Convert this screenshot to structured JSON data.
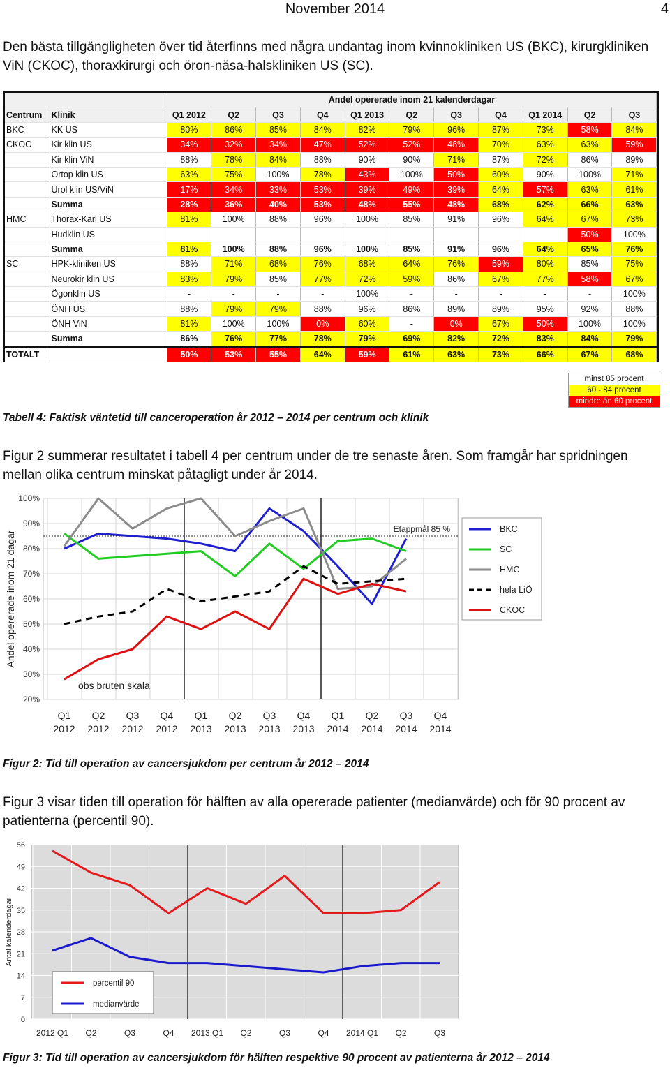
{
  "header": {
    "date": "November 2014",
    "page": "4"
  },
  "intro": "Den bästa tillgängligheten över tid återfinns med några undantag inom kvinnokliniken US (BKC), kirurgkliniken ViN (CKOC), thoraxkirurgi och öron-näsa-halskliniken US (SC).",
  "table": {
    "super_header": "Andel opererade inom 21 kalenderdagar",
    "col_headers": [
      "Centrum",
      "Klinik",
      "Q1 2012",
      "Q2",
      "Q3",
      "Q4",
      "Q1 2013",
      "Q2",
      "Q3",
      "Q4",
      "Q1 2014",
      "Q2",
      "Q3"
    ],
    "rows": [
      {
        "centrum": "BKC",
        "klinik": "KK US",
        "cells": [
          [
            "80%",
            "y"
          ],
          [
            "86%",
            "y"
          ],
          [
            "85%",
            "y"
          ],
          [
            "84%",
            "y"
          ],
          [
            "82%",
            "y"
          ],
          [
            "79%",
            "y"
          ],
          [
            "96%",
            "y"
          ],
          [
            "87%",
            "y"
          ],
          [
            "73%",
            "y"
          ],
          [
            "58%",
            "r"
          ],
          [
            "84%",
            "y"
          ]
        ]
      },
      {
        "centrum": "CKOC",
        "klinik": "Kir klin US",
        "cells": [
          [
            "34%",
            "r"
          ],
          [
            "32%",
            "r"
          ],
          [
            "34%",
            "r"
          ],
          [
            "47%",
            "r"
          ],
          [
            "52%",
            "r"
          ],
          [
            "52%",
            "r"
          ],
          [
            "48%",
            "r"
          ],
          [
            "70%",
            "y"
          ],
          [
            "63%",
            "y"
          ],
          [
            "63%",
            "y"
          ],
          [
            "59%",
            "r"
          ]
        ]
      },
      {
        "centrum": "",
        "klinik": "Kir klin ViN",
        "cells": [
          [
            "88%",
            "g"
          ],
          [
            "78%",
            "y"
          ],
          [
            "84%",
            "y"
          ],
          [
            "88%",
            "g"
          ],
          [
            "90%",
            "g"
          ],
          [
            "90%",
            "g"
          ],
          [
            "71%",
            "y"
          ],
          [
            "87%",
            "g"
          ],
          [
            "72%",
            "y"
          ],
          [
            "86%",
            "g"
          ],
          [
            "89%",
            "g"
          ]
        ]
      },
      {
        "centrum": "",
        "klinik": "Ortop klin US",
        "cells": [
          [
            "63%",
            "y"
          ],
          [
            "75%",
            "y"
          ],
          [
            "100%",
            "g"
          ],
          [
            "78%",
            "y"
          ],
          [
            "43%",
            "r"
          ],
          [
            "100%",
            "g"
          ],
          [
            "50%",
            "r"
          ],
          [
            "60%",
            "y"
          ],
          [
            "90%",
            "g"
          ],
          [
            "100%",
            "g"
          ],
          [
            "71%",
            "y"
          ]
        ]
      },
      {
        "centrum": "",
        "klinik": "Urol klin US/ViN",
        "cells": [
          [
            "17%",
            "r"
          ],
          [
            "34%",
            "r"
          ],
          [
            "33%",
            "r"
          ],
          [
            "53%",
            "r"
          ],
          [
            "39%",
            "r"
          ],
          [
            "49%",
            "r"
          ],
          [
            "39%",
            "r"
          ],
          [
            "64%",
            "y"
          ],
          [
            "57%",
            "r"
          ],
          [
            "63%",
            "y"
          ],
          [
            "61%",
            "y"
          ]
        ]
      },
      {
        "centrum": "",
        "klinik": "Summa",
        "bold": true,
        "cells": [
          [
            "28%",
            "r"
          ],
          [
            "36%",
            "r"
          ],
          [
            "40%",
            "r"
          ],
          [
            "53%",
            "r"
          ],
          [
            "48%",
            "r"
          ],
          [
            "55%",
            "r"
          ],
          [
            "48%",
            "r"
          ],
          [
            "68%",
            "y"
          ],
          [
            "62%",
            "y"
          ],
          [
            "66%",
            "y"
          ],
          [
            "63%",
            "y"
          ]
        ]
      },
      {
        "centrum": "HMC",
        "klinik": "Thorax-Kärl US",
        "cells": [
          [
            "81%",
            "y"
          ],
          [
            "100%",
            "g"
          ],
          [
            "88%",
            "g"
          ],
          [
            "96%",
            "g"
          ],
          [
            "100%",
            "g"
          ],
          [
            "85%",
            "g"
          ],
          [
            "91%",
            "g"
          ],
          [
            "96%",
            "g"
          ],
          [
            "64%",
            "y"
          ],
          [
            "67%",
            "y"
          ],
          [
            "73%",
            "y"
          ]
        ]
      },
      {
        "centrum": "",
        "klinik": "Hudklin US",
        "cells": [
          [
            "",
            "g"
          ],
          [
            "",
            "g"
          ],
          [
            "",
            "g"
          ],
          [
            "",
            "g"
          ],
          [
            "",
            "g"
          ],
          [
            "",
            "g"
          ],
          [
            "",
            "g"
          ],
          [
            "",
            "g"
          ],
          [
            "",
            "g"
          ],
          [
            "50%",
            "r"
          ],
          [
            "100%",
            "g"
          ]
        ]
      },
      {
        "centrum": "",
        "klinik": "Summa",
        "bold": true,
        "cells": [
          [
            "81%",
            "y"
          ],
          [
            "100%",
            "g"
          ],
          [
            "88%",
            "g"
          ],
          [
            "96%",
            "g"
          ],
          [
            "100%",
            "g"
          ],
          [
            "85%",
            "g"
          ],
          [
            "91%",
            "g"
          ],
          [
            "96%",
            "g"
          ],
          [
            "64%",
            "y"
          ],
          [
            "65%",
            "y"
          ],
          [
            "76%",
            "y"
          ]
        ]
      },
      {
        "centrum": "SC",
        "klinik": "HPK-kliniken US",
        "cells": [
          [
            "88%",
            "g"
          ],
          [
            "71%",
            "y"
          ],
          [
            "68%",
            "y"
          ],
          [
            "76%",
            "y"
          ],
          [
            "68%",
            "y"
          ],
          [
            "64%",
            "y"
          ],
          [
            "76%",
            "y"
          ],
          [
            "59%",
            "r"
          ],
          [
            "80%",
            "y"
          ],
          [
            "85%",
            "g"
          ],
          [
            "75%",
            "y"
          ]
        ]
      },
      {
        "centrum": "",
        "klinik": "Neurokir klin US",
        "cells": [
          [
            "83%",
            "y"
          ],
          [
            "79%",
            "y"
          ],
          [
            "85%",
            "g"
          ],
          [
            "77%",
            "y"
          ],
          [
            "72%",
            "y"
          ],
          [
            "59%",
            "y"
          ],
          [
            "86%",
            "g"
          ],
          [
            "67%",
            "y"
          ],
          [
            "77%",
            "y"
          ],
          [
            "58%",
            "r"
          ],
          [
            "67%",
            "y"
          ]
        ]
      },
      {
        "centrum": "",
        "klinik": "Ögonklin US",
        "cells": [
          [
            "-",
            "g"
          ],
          [
            "-",
            "g"
          ],
          [
            "-",
            "g"
          ],
          [
            "-",
            "g"
          ],
          [
            "100%",
            "g"
          ],
          [
            "-",
            "g"
          ],
          [
            "-",
            "g"
          ],
          [
            "-",
            "g"
          ],
          [
            "-",
            "g"
          ],
          [
            "-",
            "g"
          ],
          [
            "100%",
            "g"
          ]
        ]
      },
      {
        "centrum": "",
        "klinik": "ÖNH US",
        "cells": [
          [
            "88%",
            "g"
          ],
          [
            "79%",
            "y"
          ],
          [
            "79%",
            "y"
          ],
          [
            "88%",
            "g"
          ],
          [
            "96%",
            "g"
          ],
          [
            "86%",
            "g"
          ],
          [
            "89%",
            "g"
          ],
          [
            "89%",
            "g"
          ],
          [
            "95%",
            "g"
          ],
          [
            "92%",
            "g"
          ],
          [
            "88%",
            "g"
          ]
        ]
      },
      {
        "centrum": "",
        "klinik": "ÖNH ViN",
        "cells": [
          [
            "81%",
            "y"
          ],
          [
            "100%",
            "g"
          ],
          [
            "100%",
            "g"
          ],
          [
            "0%",
            "r"
          ],
          [
            "60%",
            "y"
          ],
          [
            "-",
            "g"
          ],
          [
            "0%",
            "r"
          ],
          [
            "67%",
            "y"
          ],
          [
            "50%",
            "r"
          ],
          [
            "100%",
            "g"
          ],
          [
            "100%",
            "g"
          ]
        ]
      },
      {
        "centrum": "",
        "klinik": "Summa",
        "bold": true,
        "cells": [
          [
            "86%",
            "g"
          ],
          [
            "76%",
            "y"
          ],
          [
            "77%",
            "y"
          ],
          [
            "78%",
            "y"
          ],
          [
            "79%",
            "y"
          ],
          [
            "69%",
            "y"
          ],
          [
            "82%",
            "y"
          ],
          [
            "72%",
            "y"
          ],
          [
            "83%",
            "y"
          ],
          [
            "84%",
            "y"
          ],
          [
            "79%",
            "y"
          ]
        ]
      },
      {
        "centrum": "TOTALT",
        "klinik": "",
        "bold": true,
        "cells": [
          [
            "50%",
            "r"
          ],
          [
            "53%",
            "r"
          ],
          [
            "55%",
            "r"
          ],
          [
            "64%",
            "y"
          ],
          [
            "59%",
            "r"
          ],
          [
            "61%",
            "y"
          ],
          [
            "63%",
            "y"
          ],
          [
            "73%",
            "y"
          ],
          [
            "66%",
            "y"
          ],
          [
            "67%",
            "y"
          ],
          [
            "68%",
            "y"
          ]
        ]
      }
    ]
  },
  "table_legend": {
    "green": "minst 85 procent",
    "yellow": "60 - 84 procent",
    "red": "mindre än 60 procent"
  },
  "caption4": "Tabell 4: Faktisk väntetid till canceroperation år 2012 – 2014 per centrum och klinik",
  "para2": "Figur 2 summerar resultatet i tabell 4 per centrum under de tre senaste åren. Som framgår har spridningen mellan olika centrum minskat påtagligt under år 2014.",
  "caption2": "Figur 2: Tid till operation av cancersjukdom per centrum år 2012 – 2014",
  "para3": "Figur 3 visar tiden till operation för hälften av alla opererade patienter (medianvärde) och för 90 procent av patienterna (percentil 90).",
  "caption3": "Figur 3: Tid till operation av cancersjukdom för hälften respektive 90 procent av patienterna år 2012 – 2014",
  "chart_data": [
    {
      "type": "line",
      "ylabel": "Andel opererade inom 21 dagar",
      "ylim": [
        20,
        100
      ],
      "yticks": [
        "20%",
        "30%",
        "40%",
        "50%",
        "60%",
        "70%",
        "80%",
        "90%",
        "100%"
      ],
      "categories": [
        "Q1 2012",
        "Q2 2012",
        "Q3 2012",
        "Q4 2012",
        "Q1 2013",
        "Q2 2013",
        "Q3 2013",
        "Q4 2013",
        "Q1 2014",
        "Q2 2014",
        "Q3 2014",
        "Q4 2014"
      ],
      "cat_top": [
        "Q1",
        "Q2",
        "Q3",
        "Q4",
        "Q1",
        "Q2",
        "Q3",
        "Q4",
        "Q1",
        "Q2",
        "Q3",
        "Q4"
      ],
      "cat_bottom": [
        "2012",
        "2012",
        "2012",
        "2012",
        "2013",
        "2013",
        "2013",
        "2013",
        "2014",
        "2014",
        "2014",
        "2014"
      ],
      "target": {
        "value": 85,
        "label": "Etappmål 85 %"
      },
      "note": "obs bruten skala",
      "series": [
        {
          "name": "BKC",
          "color": "#1f1fd0",
          "dash": false,
          "values": [
            80,
            86,
            85,
            84,
            82,
            79,
            96,
            87,
            73,
            58,
            84,
            null
          ]
        },
        {
          "name": "SC",
          "color": "#22cc22",
          "dash": false,
          "values": [
            86,
            76,
            77,
            78,
            79,
            69,
            82,
            72,
            83,
            84,
            79,
            null
          ]
        },
        {
          "name": "HMC",
          "color": "#8c8c8c",
          "dash": false,
          "values": [
            81,
            100,
            88,
            96,
            100,
            85,
            91,
            96,
            64,
            65,
            76,
            null
          ]
        },
        {
          "name": "hela LiÖ",
          "color": "#000000",
          "dash": true,
          "values": [
            50,
            53,
            55,
            64,
            59,
            61,
            63,
            73,
            66,
            67,
            68,
            null
          ]
        },
        {
          "name": "CKOC",
          "color": "#dd1111",
          "dash": false,
          "values": [
            28,
            36,
            40,
            53,
            48,
            55,
            48,
            68,
            62,
            66,
            63,
            null
          ]
        }
      ]
    },
    {
      "type": "line",
      "ylabel": "Antal kalenderdagar",
      "ylim": [
        0,
        56
      ],
      "yticks": [
        "0",
        "7",
        "14",
        "21",
        "28",
        "35",
        "42",
        "49",
        "56"
      ],
      "categories": [
        "2012 Q1",
        "Q2",
        "Q3",
        "Q4",
        "2013 Q1",
        "Q2",
        "Q3",
        "Q4",
        "2014 Q1",
        "Q2",
        "Q3"
      ],
      "series": [
        {
          "name": "percentil 90",
          "color": "#e41a1c",
          "values": [
            54,
            47,
            43,
            34,
            42,
            37,
            46,
            34,
            34,
            35,
            44
          ]
        },
        {
          "name": "medianvärde",
          "color": "#1a1acc",
          "values": [
            22,
            26,
            20,
            18,
            18,
            17,
            16,
            15,
            17,
            18,
            18
          ]
        }
      ]
    }
  ]
}
